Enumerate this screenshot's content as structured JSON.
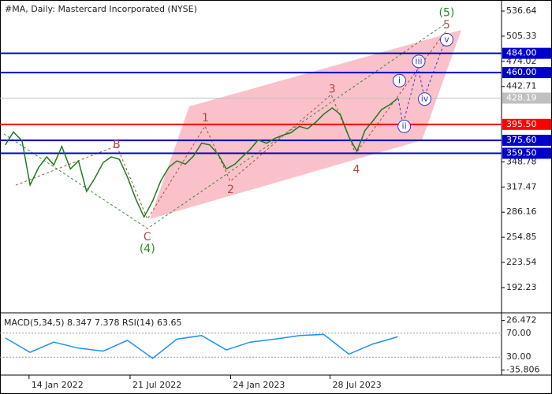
{
  "chart_data": {
    "type": "line",
    "title": "#MA, Daily:  Mastercard Incorporated (NYSE)",
    "x": [
      "2021-12-01",
      "2021-12-16",
      "2022-01-01",
      "2022-01-16",
      "2022-02-01",
      "2022-02-16",
      "2022-03-01",
      "2022-03-16",
      "2022-04-01",
      "2022-04-16",
      "2022-05-01",
      "2022-05-16",
      "2022-06-01",
      "2022-06-16",
      "2022-07-01",
      "2022-07-16",
      "2022-08-01",
      "2022-08-16",
      "2022-09-01",
      "2022-09-16",
      "2022-10-01",
      "2022-10-16",
      "2022-11-01",
      "2022-11-16",
      "2022-12-01",
      "2022-12-16",
      "2023-01-01",
      "2023-01-16",
      "2023-02-01",
      "2023-02-16",
      "2023-03-01",
      "2023-03-16",
      "2023-04-01",
      "2023-04-16",
      "2023-05-01",
      "2023-05-16",
      "2023-06-01",
      "2023-06-16",
      "2023-07-01",
      "2023-07-16",
      "2023-08-01",
      "2023-08-16",
      "2023-09-01",
      "2023-09-16",
      "2023-10-01",
      "2023-10-16",
      "2023-11-01",
      "2023-11-16",
      "2023-12-01"
    ],
    "series": [
      {
        "name": "MA",
        "color": "#1f7a1f",
        "values": [
          370,
          386,
          375,
          320,
          342,
          355,
          345,
          368,
          340,
          350,
          312,
          328,
          348,
          355,
          352,
          330,
          302,
          280,
          300,
          325,
          342,
          350,
          346,
          356,
          372,
          370,
          358,
          340,
          346,
          356,
          364,
          376,
          372,
          378,
          382,
          385,
          393,
          390,
          398,
          408,
          416,
          408,
          380,
          362,
          388,
          400,
          414,
          420,
          428
        ]
      }
    ],
    "xlim": [
      "2021-11-21",
      "2024-06-11"
    ],
    "xticks": [
      {
        "value": "2022-01-14",
        "label": "14 Jan 2022"
      },
      {
        "value": "2022-07-21",
        "label": "21 Jul 2022"
      },
      {
        "value": "2023-01-24",
        "label": "24 Jan 2023"
      },
      {
        "value": "2023-07-28",
        "label": "28 Jul 2023"
      }
    ],
    "ylim": [
      162.7,
      545.5
    ],
    "yticks": [
      536.64,
      505.33,
      474.02,
      442.71,
      348.78,
      317.47,
      286.16,
      254.85,
      223.54,
      192.23
    ],
    "last_price": 428.19,
    "levels": [
      {
        "value": 484,
        "label": "484.00",
        "color": "#0000cc"
      },
      {
        "value": 460,
        "label": "460.00",
        "color": "#0000cc"
      },
      {
        "value": 395.5,
        "label": "395.50",
        "color": "#ff0000"
      },
      {
        "value": 375.6,
        "label": "375.60",
        "color": "#0000cc"
      },
      {
        "value": 359.5,
        "label": "359.50",
        "color": "#0000cc"
      }
    ],
    "annotations": [
      {
        "text": "(5)",
        "x": "2024-03-01",
        "y": 534,
        "color": "#2e8b2e"
      },
      {
        "text": "5",
        "x": "2024-03-01",
        "y": 519,
        "color": "#b04a3e"
      },
      {
        "text": "3",
        "x": "2023-08-01",
        "y": 439,
        "color": "#b04a3e"
      },
      {
        "text": "1",
        "x": "2022-12-08",
        "y": 403,
        "color": "#b04a3e"
      },
      {
        "text": "B",
        "x": "2022-06-26",
        "y": 370,
        "color": "#b04a3e"
      },
      {
        "text": "2",
        "x": "2023-01-24",
        "y": 314,
        "color": "#b04a3e"
      },
      {
        "text": "4",
        "x": "2023-09-15",
        "y": 339,
        "color": "#b04a3e"
      },
      {
        "text": "C",
        "x": "2022-08-22",
        "y": 255,
        "color": "#b04a3e"
      },
      {
        "text": "(4)",
        "x": "2022-08-22",
        "y": 240,
        "color": "#2e8b2e"
      },
      {
        "text": "i",
        "x": "2023-12-04",
        "y": 450,
        "color": "#3333cc",
        "style": "circle"
      },
      {
        "text": "ii",
        "x": "2023-12-13",
        "y": 393,
        "color": "#3333cc",
        "style": "circle"
      },
      {
        "text": "iii",
        "x": "2024-01-09",
        "y": 474,
        "color": "#3333cc",
        "style": "circle"
      },
      {
        "text": "iv",
        "x": "2024-01-20",
        "y": 427,
        "color": "#3333cc",
        "style": "circle"
      },
      {
        "text": "v",
        "x": "2024-03-01",
        "y": 501,
        "color": "#3333cc",
        "style": "circle"
      }
    ],
    "indicator": {
      "title": "MACD(5,34,5) 8.347 7.378 RSI(14) 63.65",
      "macd_lim": [
        -42,
        33
      ],
      "macd_ticks": [
        26.472,
        -35.806
      ],
      "rsi_lim": [
        0,
        100
      ],
      "rsi_ticks": [
        {
          "value": 70,
          "label": "70.00"
        },
        {
          "value": 30,
          "label": "30.00"
        }
      ],
      "rsi_x": [
        "2021-12-01",
        "2022-01-16",
        "2022-03-01",
        "2022-04-16",
        "2022-06-01",
        "2022-07-16",
        "2022-09-01",
        "2022-10-16",
        "2022-12-01",
        "2023-01-16",
        "2023-03-01",
        "2023-04-16",
        "2023-06-01",
        "2023-07-16",
        "2023-09-01",
        "2023-10-16",
        "2023-12-01"
      ],
      "rsi_values": [
        62,
        38,
        55,
        45,
        40,
        58,
        28,
        60,
        66,
        42,
        55,
        60,
        66,
        68,
        35,
        52,
        64
      ],
      "rsi_color": "#1e90ff"
    }
  }
}
